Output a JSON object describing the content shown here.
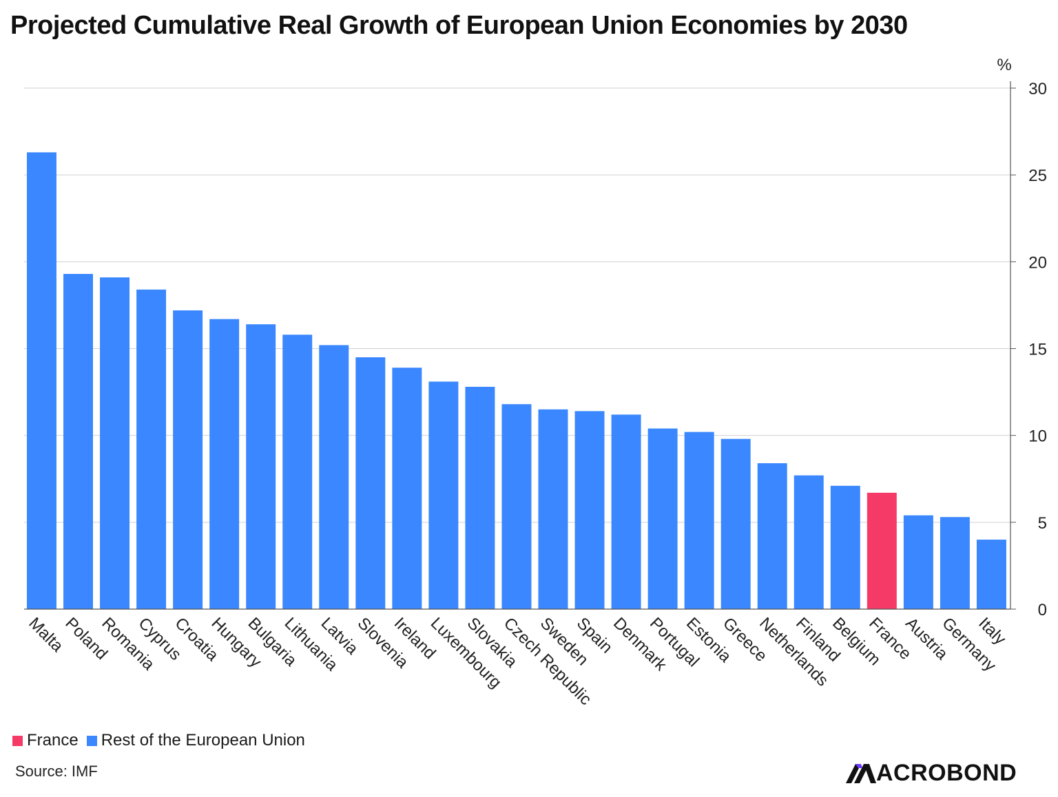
{
  "title": "Projected Cumulative Real Growth of European Union Economies by 2030",
  "unit_label": "%",
  "legend": [
    {
      "label": "France",
      "color": "#f53a68"
    },
    {
      "label": "Rest of the European Union",
      "color": "#3a87ff"
    }
  ],
  "source": "Source: IMF",
  "logo_text": "ACROBOND",
  "colors": {
    "highlight": "#f53a68",
    "base": "#3a87ff",
    "grid": "#d0d0d0",
    "axis": "#555555"
  },
  "chart_data": {
    "type": "bar",
    "title": "Projected Cumulative Real Growth of European Union Economies by 2030",
    "xlabel": "",
    "ylabel": "%",
    "ylim": [
      0,
      30
    ],
    "yticks": [
      0,
      5,
      10,
      15,
      20,
      25,
      30
    ],
    "y_axis_position": "right",
    "grid": true,
    "legend_position": "bottom-left",
    "categories": [
      "Malta",
      "Poland",
      "Romania",
      "Cyprus",
      "Croatia",
      "Hungary",
      "Bulgaria",
      "Lithuania",
      "Latvia",
      "Slovenia",
      "Ireland",
      "Luxembourg",
      "Slovakia",
      "Czech Republic",
      "Sweden",
      "Spain",
      "Denmark",
      "Portugal",
      "Estonia",
      "Greece",
      "Netherlands",
      "Finland",
      "Belgium",
      "France",
      "Austria",
      "Germany",
      "Italy"
    ],
    "values": [
      26.3,
      19.3,
      19.1,
      18.4,
      17.2,
      16.7,
      16.4,
      15.8,
      15.2,
      14.5,
      13.9,
      13.1,
      12.8,
      11.8,
      11.5,
      11.4,
      11.2,
      10.4,
      10.2,
      9.8,
      8.4,
      7.7,
      7.1,
      6.7,
      5.4,
      5.3,
      4.0
    ],
    "series_assignment": [
      "Rest of the European Union",
      "Rest of the European Union",
      "Rest of the European Union",
      "Rest of the European Union",
      "Rest of the European Union",
      "Rest of the European Union",
      "Rest of the European Union",
      "Rest of the European Union",
      "Rest of the European Union",
      "Rest of the European Union",
      "Rest of the European Union",
      "Rest of the European Union",
      "Rest of the European Union",
      "Rest of the European Union",
      "Rest of the European Union",
      "Rest of the European Union",
      "Rest of the European Union",
      "Rest of the European Union",
      "Rest of the European Union",
      "Rest of the European Union",
      "Rest of the European Union",
      "Rest of the European Union",
      "Rest of the European Union",
      "France",
      "Rest of the European Union",
      "Rest of the European Union",
      "Rest of the European Union"
    ]
  }
}
